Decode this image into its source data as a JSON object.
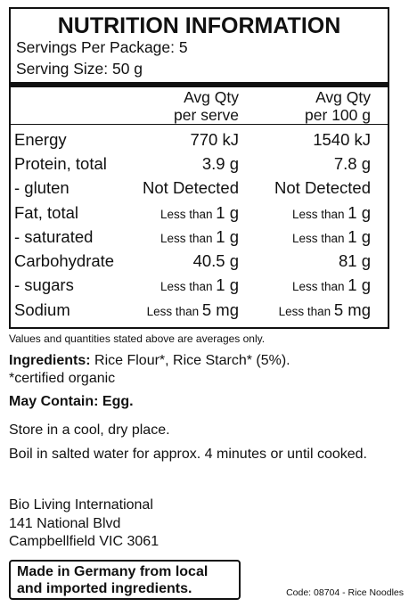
{
  "panel": {
    "title": "NUTRITION INFORMATION",
    "servings_per_package": "Servings Per Package: 5",
    "serving_size": "Serving Size: 50 g",
    "header_per_serve_line1": "Avg Qty",
    "header_per_serve_line2": "per serve",
    "header_per_100_line1": "Avg Qty",
    "header_per_100_line2": "per 100 g"
  },
  "rows": [
    {
      "name": "Energy",
      "serve_prefix": "",
      "serve_value": "770 kJ",
      "p100_prefix": "",
      "p100_value": "1540 kJ"
    },
    {
      "name": "Protein, total",
      "serve_prefix": "",
      "serve_value": "3.9 g",
      "p100_prefix": "",
      "p100_value": "7.8 g"
    },
    {
      "name": "- gluten",
      "serve_prefix": "",
      "serve_value": "Not Detected",
      "p100_prefix": "",
      "p100_value": "Not Detected"
    },
    {
      "name": "Fat, total",
      "serve_prefix": "Less than ",
      "serve_value": "1 g",
      "p100_prefix": "Less than ",
      "p100_value": "1 g"
    },
    {
      "name": "- saturated",
      "serve_prefix": "Less than ",
      "serve_value": "1 g",
      "p100_prefix": "Less than ",
      "p100_value": "1 g"
    },
    {
      "name": "Carbohydrate",
      "serve_prefix": "",
      "serve_value": "40.5 g",
      "p100_prefix": "",
      "p100_value": "81 g"
    },
    {
      "name": "- sugars",
      "serve_prefix": "Less than ",
      "serve_value": "1 g",
      "p100_prefix": "Less than ",
      "p100_value": "1 g"
    },
    {
      "name": "Sodium",
      "serve_prefix": "Less than ",
      "serve_value": "5 mg",
      "p100_prefix": "Less than ",
      "p100_value": "5 mg"
    }
  ],
  "note": "Values and quantities stated above are averages only.",
  "ingredients": {
    "label": "Ingredients:",
    "text": " Rice Flour*, Rice Starch* (5%).",
    "certified": "*certified organic"
  },
  "may_contain": {
    "label": "May Contain:",
    "text": " Egg."
  },
  "storage": "Store in a cool, dry place.",
  "cooking": "Boil in salted water for approx. 4 minutes or until cooked.",
  "address": {
    "line1": "Bio Living International",
    "line2": "141 National Blvd",
    "line3": "Campbellfield VIC 3061"
  },
  "origin": {
    "line1": "Made in Germany from local",
    "line2": "and imported ingredients."
  },
  "code": "Code: 08704 - Rice Noodles"
}
